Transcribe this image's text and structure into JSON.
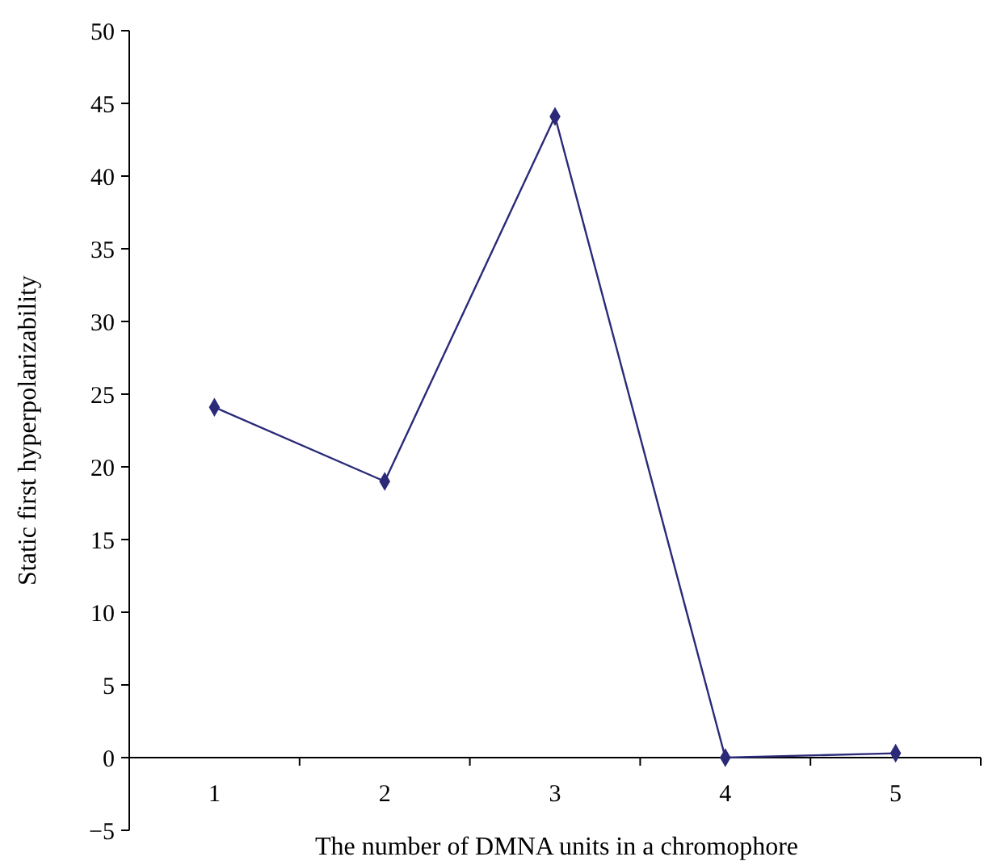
{
  "chart_data": {
    "type": "line",
    "xlabel": "The number of DMNA units in a chromophore",
    "ylabel": "Static first hyperpolarizability",
    "categories": [
      "1",
      "2",
      "3",
      "4",
      "5"
    ],
    "series": [
      {
        "color": "#2b2a78",
        "values": [
          24.1,
          19.0,
          44.1,
          0.0,
          0.3
        ]
      }
    ],
    "ylim": [
      -5,
      50
    ],
    "yticks": [
      {
        "value": -5,
        "label": "−5"
      },
      0,
      5,
      10,
      15,
      20,
      25,
      30,
      35,
      40,
      45,
      50
    ],
    "marker": "diamond",
    "line_style": "solid"
  }
}
